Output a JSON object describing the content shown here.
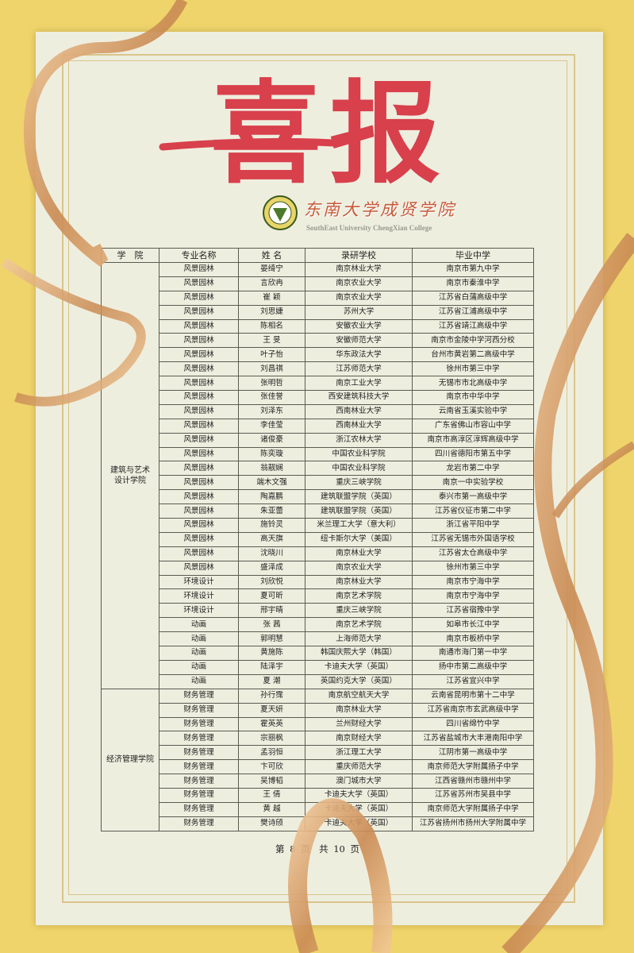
{
  "poster": {
    "title": "喜报",
    "college_name_cn": "东南大学成贤学院",
    "college_name_en": "SouthEast University ChengXian College",
    "colors": {
      "background": "#efd46b",
      "paper": "#eeeedf",
      "title_red": "#d8404c",
      "ribbon": "#d29a66"
    }
  },
  "table": {
    "headers": [
      "学　院",
      "专业名称",
      "姓 名",
      "录研学校",
      "毕业中学"
    ],
    "groups": [
      {
        "college": "建筑与艺术\n设计学院",
        "rows": [
          [
            "风景园林",
            "晏绮宁",
            "南京林业大学",
            "南京市第九中学"
          ],
          [
            "风景园林",
            "言欣冉",
            "南京农业大学",
            "南京市秦淮中学"
          ],
          [
            "风景园林",
            "崔 颖",
            "南京农业大学",
            "江苏省白蒲高级中学"
          ],
          [
            "风景园林",
            "刘思婕",
            "苏州大学",
            "江苏省江浦高级中学"
          ],
          [
            "风景园林",
            "陈相名",
            "安徽农业大学",
            "江苏省靖江高级中学"
          ],
          [
            "风景园林",
            "王 旻",
            "安徽师范大学",
            "南京市金陵中学河西分校"
          ],
          [
            "风景园林",
            "叶子怡",
            "华东政法大学",
            "台州市黄岩第二高级中学"
          ],
          [
            "风景园林",
            "刘昌祺",
            "江苏师范大学",
            "徐州市第三中学"
          ],
          [
            "风景园林",
            "张明哲",
            "南京工业大学",
            "无锡市市北高级中学"
          ],
          [
            "风景园林",
            "张佳誉",
            "西安建筑科技大学",
            "南京市中华中学"
          ],
          [
            "风景园林",
            "刘泽东",
            "西南林业大学",
            "云南省玉溪实验中学"
          ],
          [
            "风景园林",
            "李佳莹",
            "西南林业大学",
            "广东省佛山市容山中学"
          ],
          [
            "风景园林",
            "诸俊豪",
            "浙江农林大学",
            "南京市高淳区淳辉高级中学"
          ],
          [
            "风景园林",
            "陈奕璇",
            "中国农业科学院",
            "四川省德阳市第五中学"
          ],
          [
            "风景园林",
            "翁靓娴",
            "中国农业科学院",
            "龙岩市第二中学"
          ],
          [
            "风景园林",
            "端木文强",
            "重庆三峡学院",
            "南京一中实验学校"
          ],
          [
            "风景园林",
            "陶嘉鹏",
            "建筑联盟学院（英国）",
            "泰兴市第一高级中学"
          ],
          [
            "风景园林",
            "朱亚蕾",
            "建筑联盟学院（英国）",
            "江苏省仪征市第二中学"
          ],
          [
            "风景园林",
            "施铃灵",
            "米兰理工大学（意大利）",
            "浙江省平阳中学"
          ],
          [
            "风景园林",
            "高天旗",
            "纽卡斯尔大学（美国）",
            "江苏省无锡市外国语学校"
          ],
          [
            "风景园林",
            "沈晓川",
            "南京林业大学",
            "江苏省太仓高级中学"
          ],
          [
            "风景园林",
            "盛泽成",
            "南京农业大学",
            "徐州市第三中学"
          ],
          [
            "环境设计",
            "刘欣悦",
            "南京林业大学",
            "南京市宁海中学"
          ],
          [
            "环境设计",
            "夏可昕",
            "南京艺术学院",
            "南京市宁海中学"
          ],
          [
            "环境设计",
            "邢宇晴",
            "重庆三峡学院",
            "江苏省宿豫中学"
          ],
          [
            "动画",
            "张 茜",
            "南京艺术学院",
            "如皋市长江中学"
          ],
          [
            "动画",
            "郭明慧",
            "上海师范大学",
            "南京市板桥中学"
          ],
          [
            "动画",
            "黄施陈",
            "韩国庆熙大学（韩国）",
            "南通市海门第一中学"
          ],
          [
            "动画",
            "陆泽宇",
            "卡迪夫大学（英国）",
            "扬中市第二高级中学"
          ],
          [
            "动画",
            "夏 潮",
            "英国约克大学（英国）",
            "江苏省宜兴中学"
          ]
        ]
      },
      {
        "college": "经济管理学院",
        "rows": [
          [
            "财务管理",
            "孙行霈",
            "南京航空航天大学",
            "云南省昆明市第十二中学"
          ],
          [
            "财务管理",
            "夏天妍",
            "南京林业大学",
            "江苏省南京市玄武高级中学"
          ],
          [
            "财务管理",
            "霍英英",
            "兰州财经大学",
            "四川省绵竹中学"
          ],
          [
            "财务管理",
            "宗丽枫",
            "南京财经大学",
            "江苏省盐城市大丰港南阳中学"
          ],
          [
            "财务管理",
            "孟羽恒",
            "浙江理工大学",
            "江阴市第一高级中学"
          ],
          [
            "财务管理",
            "卞可欣",
            "重庆师范大学",
            "南京师范大学附属扬子中学"
          ],
          [
            "财务管理",
            "吴博韬",
            "澳门城市大学",
            "江西省赣州市赣州中学"
          ],
          [
            "财务管理",
            "王 倩",
            "卡迪夫大学（英国）",
            "江苏省苏州市吴县中学"
          ],
          [
            "财务管理",
            "黄 越",
            "卡迪夫大学（英国）",
            "南京师范大学附属扬子中学"
          ],
          [
            "财务管理",
            "樊诗颀",
            "卡迪夫大学（英国）",
            "江苏省扬州市扬州大学附属中学"
          ]
        ]
      }
    ]
  },
  "footer": {
    "page_text": "第 8 页　共 10 页"
  }
}
